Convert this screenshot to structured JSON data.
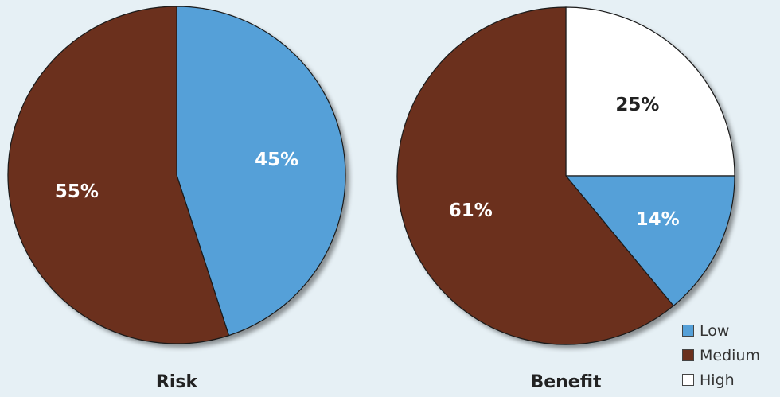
{
  "chart_data": [
    {
      "type": "pie",
      "title": "Risk",
      "slices": [
        {
          "category": "Low",
          "value": 45,
          "label": "45%"
        },
        {
          "category": "Medium",
          "value": 55,
          "label": "55%"
        }
      ]
    },
    {
      "type": "pie",
      "title": "Benefit",
      "slices": [
        {
          "category": "High",
          "value": 25,
          "label": "25%"
        },
        {
          "category": "Low",
          "value": 14,
          "label": "14%"
        },
        {
          "category": "Medium",
          "value": 61,
          "label": "61%"
        }
      ]
    }
  ],
  "legend": {
    "placement": "bottom-right",
    "items": [
      {
        "label": "Low",
        "color": "#55a0d8"
      },
      {
        "label": "Medium",
        "color": "#6b301d"
      },
      {
        "label": "High",
        "color": "#ffffff"
      }
    ]
  },
  "label_colors": {
    "dark_slice": "#ffffff",
    "light_slice": "#222222"
  }
}
